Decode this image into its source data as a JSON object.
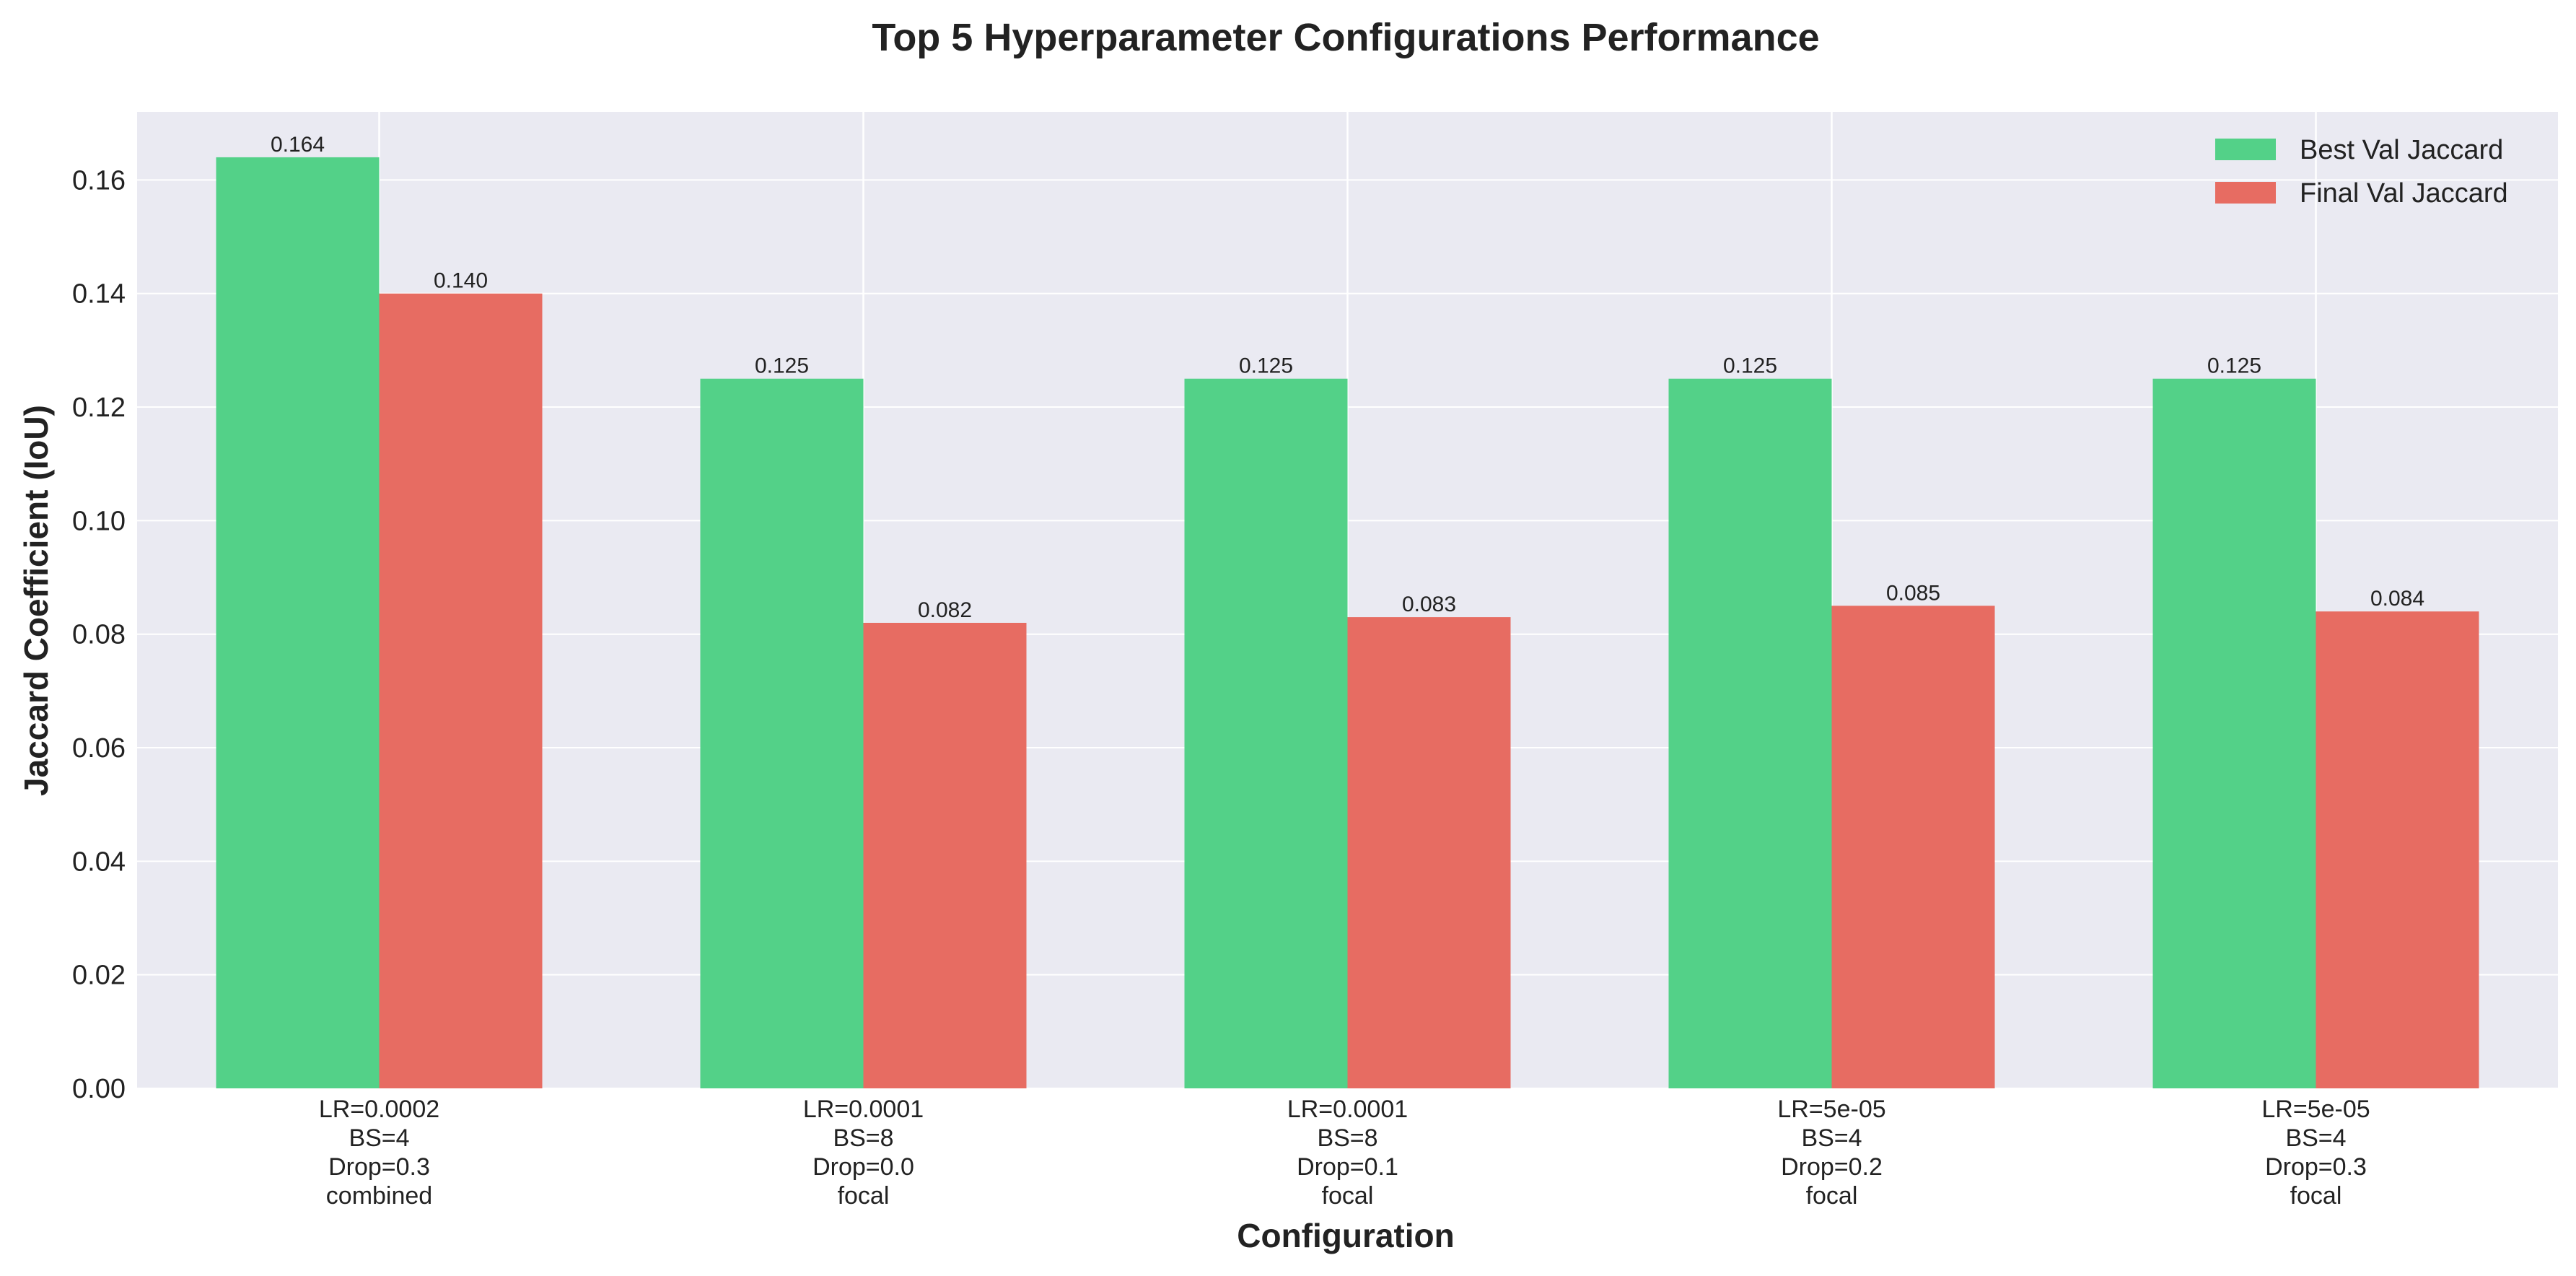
{
  "chart_data": {
    "type": "bar",
    "title": "Top 5 Hyperparameter Configurations Performance",
    "xlabel": "Configuration",
    "ylabel": "Jaccard Coefficient (IoU)",
    "ylim": [
      0,
      0.172
    ],
    "yticks": [
      "0.00",
      "0.02",
      "0.04",
      "0.06",
      "0.08",
      "0.10",
      "0.12",
      "0.14",
      "0.16"
    ],
    "grid": true,
    "legend_position": "top-right",
    "categories": [
      [
        "LR=0.0002",
        "BS=4",
        "Drop=0.3",
        "combined"
      ],
      [
        "LR=0.0001",
        "BS=8",
        "Drop=0.0",
        "focal"
      ],
      [
        "LR=0.0001",
        "BS=8",
        "Drop=0.1",
        "focal"
      ],
      [
        "LR=5e-05",
        "BS=4",
        "Drop=0.2",
        "focal"
      ],
      [
        "LR=5e-05",
        "BS=4",
        "Drop=0.3",
        "focal"
      ]
    ],
    "series": [
      {
        "name": "Best Val Jaccard",
        "color": "#53d188",
        "values": [
          0.164,
          0.125,
          0.125,
          0.125,
          0.125
        ],
        "labels": [
          "0.164",
          "0.125",
          "0.125",
          "0.125",
          "0.125"
        ]
      },
      {
        "name": "Final Val Jaccard",
        "color": "#e76c62",
        "values": [
          0.14,
          0.082,
          0.083,
          0.085,
          0.084
        ],
        "labels": [
          "0.140",
          "0.082",
          "0.083",
          "0.085",
          "0.084"
        ]
      }
    ],
    "background_color": "#eaeaf2"
  }
}
